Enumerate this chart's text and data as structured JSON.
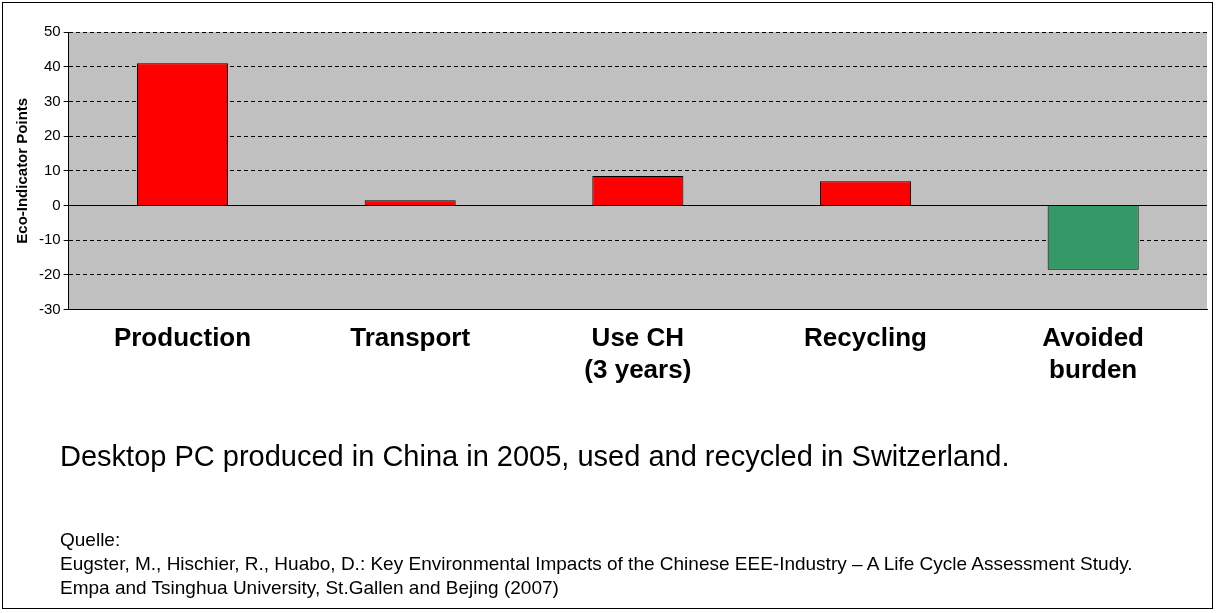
{
  "chart_data": {
    "type": "bar",
    "ylabel": "Eco-Indicator Points",
    "categories": [
      "Production",
      "Transport",
      "Use CH\n(3 years)",
      "Recycling",
      "Avoided\nburden"
    ],
    "values": [
      41,
      1.5,
      8.5,
      7,
      -18.5
    ],
    "colors": [
      "#ff0000",
      "#ff0000",
      "#ff0000",
      "#ff0000",
      "#339966"
    ],
    "ylim": [
      -30,
      50
    ],
    "yticks": [
      -30,
      -20,
      -10,
      0,
      10,
      20,
      30,
      40,
      50
    ],
    "grid": "y",
    "legend": false,
    "annotations": [
      "Desktop PC produced in China in 2005, used and recycled in Switzerland.",
      "Quelle:",
      "Eugster, M., Hischier, R., Huabo, D.: Key Environmental Impacts of the Chinese EEE-Industry – A Life Cycle Assessment Study. Empa and Tsinghua University, St.Gallen and Bejing (2007)"
    ]
  }
}
